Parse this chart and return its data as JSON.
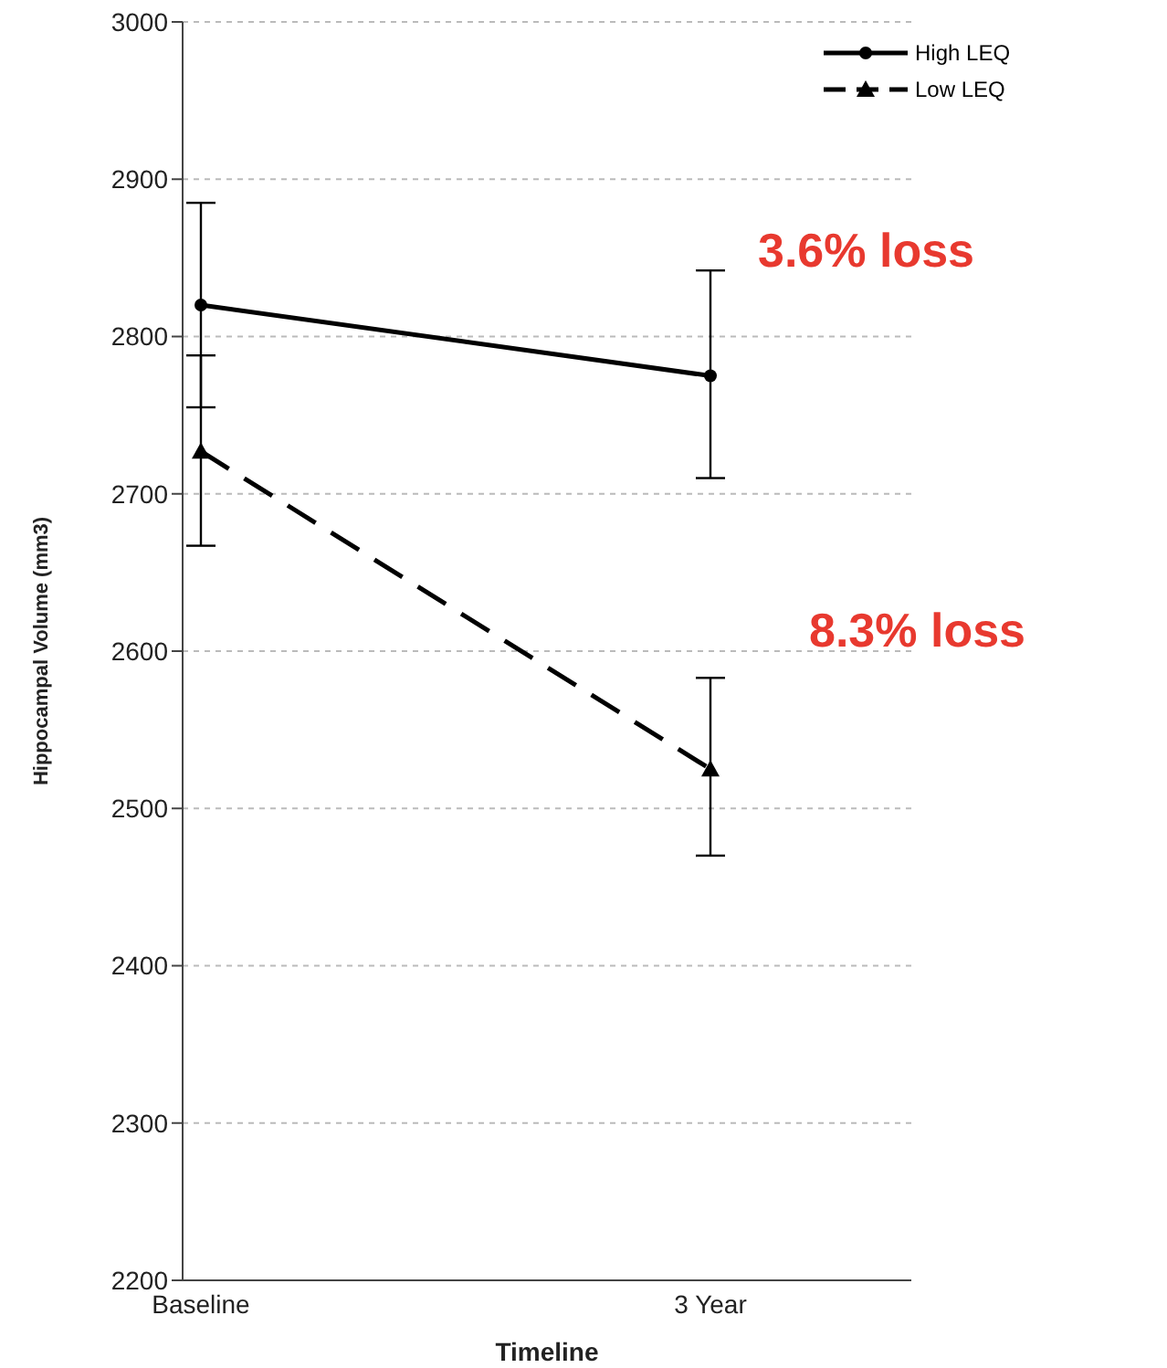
{
  "chart_data": {
    "type": "line",
    "xlabel": "Timeline",
    "ylabel": "Hippocampal Volume (mm3)",
    "categories": [
      "Baseline",
      "3 Year"
    ],
    "series": [
      {
        "name": "High LEQ",
        "color": "#000000",
        "values": [
          2820,
          2775
        ],
        "errors": [
          [
            2755,
            2885
          ],
          [
            2710,
            2842
          ]
        ],
        "marker": "circle",
        "line_style": "solid"
      },
      {
        "name": "Low LEQ",
        "color": "#000000",
        "values": [
          2727,
          2525
        ],
        "errors": [
          [
            2667,
            2788
          ],
          [
            2470,
            2583
          ]
        ],
        "marker": "triangle",
        "line_style": "dashed"
      }
    ],
    "ylim": [
      2200,
      3000
    ],
    "yticks": [
      2200,
      2300,
      2400,
      2500,
      2600,
      2700,
      2800,
      2900,
      3000
    ],
    "grid": "y",
    "legend": "top right",
    "annotations": [
      "3.6% loss",
      "8.3% loss"
    ]
  }
}
